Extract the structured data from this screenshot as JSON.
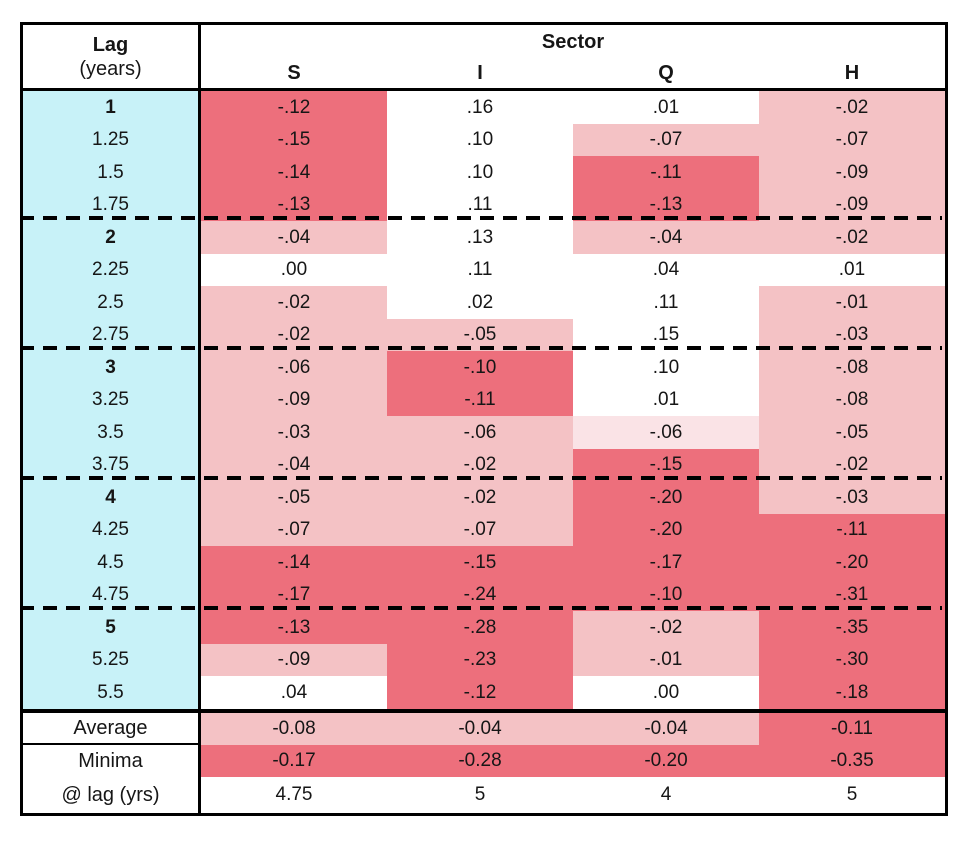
{
  "table": {
    "corner_title": "Lag",
    "corner_subtitle": "(years)",
    "group_header": "Sector",
    "columns": [
      "S",
      "I",
      "Q",
      "H"
    ],
    "colors": {
      "dark": "#ED6F7C",
      "light": "#F4C2C5",
      "xlight": "#FAE3E6",
      "white": "#FFFFFF",
      "lag_column": "#C8F2F8",
      "border": "#000000"
    },
    "rows": [
      {
        "lag": "1",
        "bold": true,
        "cells": [
          {
            "v": "-.12",
            "s": "dark"
          },
          {
            "v": ".16",
            "s": "white"
          },
          {
            "v": ".01",
            "s": "white"
          },
          {
            "v": "-.02",
            "s": "light"
          }
        ]
      },
      {
        "lag": "1.25",
        "bold": false,
        "cells": [
          {
            "v": "-.15",
            "s": "dark"
          },
          {
            "v": ".10",
            "s": "white"
          },
          {
            "v": "-.07",
            "s": "light"
          },
          {
            "v": "-.07",
            "s": "light"
          }
        ]
      },
      {
        "lag": "1.5",
        "bold": false,
        "cells": [
          {
            "v": "-.14",
            "s": "dark"
          },
          {
            "v": ".10",
            "s": "white"
          },
          {
            "v": "-.11",
            "s": "dark"
          },
          {
            "v": "-.09",
            "s": "light"
          }
        ]
      },
      {
        "lag": "1.75",
        "bold": false,
        "cells": [
          {
            "v": "-.13",
            "s": "dark"
          },
          {
            "v": ".11",
            "s": "white"
          },
          {
            "v": "-.13",
            "s": "dark"
          },
          {
            "v": "-.09",
            "s": "light"
          }
        ]
      },
      {
        "lag": "2",
        "bold": true,
        "cells": [
          {
            "v": "-.04",
            "s": "light"
          },
          {
            "v": ".13",
            "s": "white"
          },
          {
            "v": "-.04",
            "s": "light"
          },
          {
            "v": "-.02",
            "s": "light"
          }
        ]
      },
      {
        "lag": "2.25",
        "bold": false,
        "cells": [
          {
            "v": ".00",
            "s": "white"
          },
          {
            "v": ".11",
            "s": "white"
          },
          {
            "v": ".04",
            "s": "white"
          },
          {
            "v": ".01",
            "s": "white"
          }
        ]
      },
      {
        "lag": "2.5",
        "bold": false,
        "cells": [
          {
            "v": "-.02",
            "s": "light"
          },
          {
            "v": ".02",
            "s": "white"
          },
          {
            "v": ".11",
            "s": "white"
          },
          {
            "v": "-.01",
            "s": "light"
          }
        ]
      },
      {
        "lag": "2.75",
        "bold": false,
        "cells": [
          {
            "v": "-.02",
            "s": "light"
          },
          {
            "v": "-.05",
            "s": "light"
          },
          {
            "v": ".15",
            "s": "white"
          },
          {
            "v": "-.03",
            "s": "light"
          }
        ]
      },
      {
        "lag": "3",
        "bold": true,
        "cells": [
          {
            "v": "-.06",
            "s": "light"
          },
          {
            "v": "-.10",
            "s": "dark"
          },
          {
            "v": ".10",
            "s": "white"
          },
          {
            "v": "-.08",
            "s": "light"
          }
        ]
      },
      {
        "lag": "3.25",
        "bold": false,
        "cells": [
          {
            "v": "-.09",
            "s": "light"
          },
          {
            "v": "-.11",
            "s": "dark"
          },
          {
            "v": ".01",
            "s": "white"
          },
          {
            "v": "-.08",
            "s": "light"
          }
        ]
      },
      {
        "lag": "3.5",
        "bold": false,
        "cells": [
          {
            "v": "-.03",
            "s": "light"
          },
          {
            "v": "-.06",
            "s": "light"
          },
          {
            "v": "-.06",
            "s": "xlight"
          },
          {
            "v": "-.05",
            "s": "light"
          }
        ]
      },
      {
        "lag": "3.75",
        "bold": false,
        "cells": [
          {
            "v": "-.04",
            "s": "light"
          },
          {
            "v": "-.02",
            "s": "light"
          },
          {
            "v": "-.15",
            "s": "dark"
          },
          {
            "v": "-.02",
            "s": "light"
          }
        ]
      },
      {
        "lag": "4",
        "bold": true,
        "cells": [
          {
            "v": "-.05",
            "s": "light"
          },
          {
            "v": "-.02",
            "s": "light"
          },
          {
            "v": "-.20",
            "s": "dark"
          },
          {
            "v": "-.03",
            "s": "light"
          }
        ]
      },
      {
        "lag": "4.25",
        "bold": false,
        "cells": [
          {
            "v": "-.07",
            "s": "light"
          },
          {
            "v": "-.07",
            "s": "light"
          },
          {
            "v": "-.20",
            "s": "dark"
          },
          {
            "v": "-.11",
            "s": "dark"
          }
        ]
      },
      {
        "lag": "4.5",
        "bold": false,
        "cells": [
          {
            "v": "-.14",
            "s": "dark"
          },
          {
            "v": "-.15",
            "s": "dark"
          },
          {
            "v": "-.17",
            "s": "dark"
          },
          {
            "v": "-.20",
            "s": "dark"
          }
        ]
      },
      {
        "lag": "4.75",
        "bold": false,
        "cells": [
          {
            "v": "-.17",
            "s": "dark"
          },
          {
            "v": "-.24",
            "s": "dark"
          },
          {
            "v": "-.10",
            "s": "dark"
          },
          {
            "v": "-.31",
            "s": "dark"
          }
        ]
      },
      {
        "lag": "5",
        "bold": true,
        "cells": [
          {
            "v": "-.13",
            "s": "dark"
          },
          {
            "v": "-.28",
            "s": "dark"
          },
          {
            "v": "-.02",
            "s": "light"
          },
          {
            "v": "-.35",
            "s": "dark"
          }
        ]
      },
      {
        "lag": "5.25",
        "bold": false,
        "cells": [
          {
            "v": "-.09",
            "s": "light"
          },
          {
            "v": "-.23",
            "s": "dark"
          },
          {
            "v": "-.01",
            "s": "light"
          },
          {
            "v": "-.30",
            "s": "dark"
          }
        ]
      },
      {
        "lag": "5.5",
        "bold": false,
        "cells": [
          {
            "v": ".04",
            "s": "white"
          },
          {
            "v": "-.12",
            "s": "dark"
          },
          {
            "v": ".00",
            "s": "white"
          },
          {
            "v": "-.18",
            "s": "dark"
          }
        ]
      }
    ],
    "footer": {
      "average_label": "Average",
      "minima_label": "Minima",
      "at_lag_label": "@ lag (yrs)",
      "average": [
        {
          "v": "-0.08",
          "s": "light"
        },
        {
          "v": "-0.04",
          "s": "light"
        },
        {
          "v": "-0.04",
          "s": "light"
        },
        {
          "v": "-0.11",
          "s": "dark"
        }
      ],
      "minima": [
        {
          "v": "-0.17",
          "s": "dark"
        },
        {
          "v": "-0.28",
          "s": "dark"
        },
        {
          "v": "-0.20",
          "s": "dark"
        },
        {
          "v": "-0.35",
          "s": "dark"
        }
      ],
      "at_lag": [
        {
          "v": "4.75",
          "s": "white"
        },
        {
          "v": "5",
          "s": "white"
        },
        {
          "v": "4",
          "s": "white"
        },
        {
          "v": "5",
          "s": "white"
        }
      ]
    }
  },
  "chart_data": {
    "type": "heatmap",
    "title": "",
    "row_axis_label": "Lag (years)",
    "column_group_label": "Sector",
    "columns": [
      "S",
      "I",
      "Q",
      "H"
    ],
    "lags": [
      1,
      1.25,
      1.5,
      1.75,
      2,
      2.25,
      2.5,
      2.75,
      3,
      3.25,
      3.5,
      3.75,
      4,
      4.25,
      4.5,
      4.75,
      5,
      5.25,
      5.5
    ],
    "series": [
      {
        "name": "S",
        "values": [
          -0.12,
          -0.15,
          -0.14,
          -0.13,
          -0.04,
          0.0,
          -0.02,
          -0.02,
          -0.06,
          -0.09,
          -0.03,
          -0.04,
          -0.05,
          -0.07,
          -0.14,
          -0.17,
          -0.13,
          -0.09,
          0.04
        ]
      },
      {
        "name": "I",
        "values": [
          0.16,
          0.1,
          0.1,
          0.11,
          0.13,
          0.11,
          0.02,
          -0.05,
          -0.1,
          -0.11,
          -0.06,
          -0.02,
          -0.02,
          -0.07,
          -0.15,
          -0.24,
          -0.28,
          -0.23,
          -0.12
        ]
      },
      {
        "name": "Q",
        "values": [
          0.01,
          -0.07,
          -0.11,
          -0.13,
          -0.04,
          0.04,
          0.11,
          0.15,
          0.1,
          0.01,
          -0.06,
          -0.15,
          -0.2,
          -0.2,
          -0.17,
          -0.1,
          -0.02,
          -0.01,
          0.0
        ]
      },
      {
        "name": "H",
        "values": [
          -0.02,
          -0.07,
          -0.09,
          -0.09,
          -0.02,
          0.01,
          -0.01,
          -0.03,
          -0.08,
          -0.08,
          -0.05,
          -0.02,
          -0.03,
          -0.11,
          -0.2,
          -0.31,
          -0.35,
          -0.3,
          -0.18
        ]
      }
    ],
    "summary": {
      "average": [
        -0.08,
        -0.04,
        -0.04,
        -0.11
      ],
      "minima": [
        -0.17,
        -0.28,
        -0.2,
        -0.35
      ],
      "minima_at_lag": [
        4.75,
        5,
        4,
        5
      ]
    },
    "legend_position": "none",
    "grid": false
  }
}
